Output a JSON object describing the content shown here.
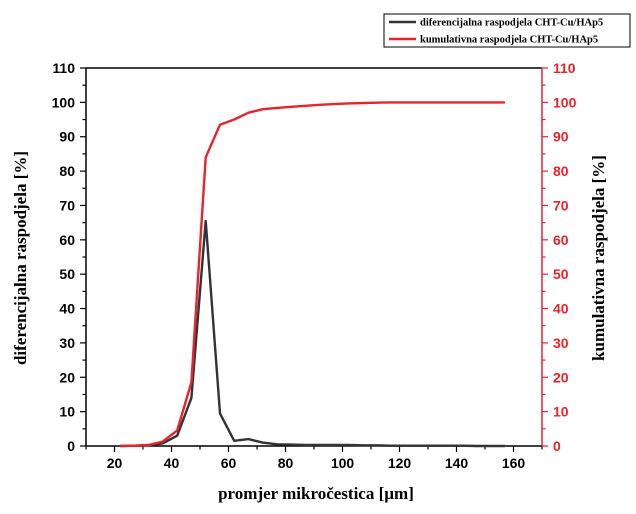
{
  "chart_data": {
    "type": "line",
    "xlabel": "promjer mikročestica [µm]",
    "ylabel_left": "diferencijalna raspodjela [%]",
    "ylabel_right": "kumulativna raspodjela [%]",
    "xlim": [
      10,
      170
    ],
    "ylim_left": [
      0,
      110
    ],
    "ylim_right": [
      0,
      110
    ],
    "x_ticks": [
      20,
      40,
      60,
      80,
      100,
      120,
      140,
      160
    ],
    "y_ticks": [
      0,
      10,
      20,
      30,
      40,
      50,
      60,
      70,
      80,
      90,
      100,
      110
    ],
    "grid": false,
    "legend_position": "top-right",
    "colors": {
      "left_axis": "#000000",
      "right_axis": "#e8232a"
    },
    "series": [
      {
        "name": "diferencijalna raspodjela CHT-Cu/HAp5",
        "axis": "left",
        "color": "#333333",
        "x": [
          22,
          27,
          32,
          37,
          42,
          47,
          52,
          57,
          62,
          67,
          72,
          77,
          82,
          87,
          92,
          97,
          102,
          107,
          112,
          117,
          122,
          127,
          132,
          137,
          142,
          147,
          152,
          157
        ],
        "y": [
          0,
          0.1,
          0.2,
          0.8,
          3,
          14,
          65.5,
          9.5,
          1.5,
          2,
          1,
          0.5,
          0.4,
          0.3,
          0.3,
          0.3,
          0.3,
          0.2,
          0.2,
          0.1,
          0.1,
          0.1,
          0.1,
          0.1,
          0.1,
          0,
          0,
          0
        ]
      },
      {
        "name": "kumulativna raspodjela CHT-Cu/HAp5",
        "axis": "right",
        "color": "#e8232a",
        "x": [
          22,
          27,
          32,
          37,
          42,
          47,
          52,
          57,
          62,
          67,
          72,
          77,
          82,
          87,
          92,
          97,
          102,
          107,
          112,
          117,
          122,
          127,
          132,
          137,
          142,
          147,
          152,
          157
        ],
        "y": [
          0,
          0.1,
          0.3,
          1.3,
          4.5,
          18.5,
          84,
          93.5,
          95,
          97,
          98,
          98.4,
          98.7,
          99,
          99.3,
          99.5,
          99.7,
          99.8,
          99.9,
          100,
          100,
          100,
          100,
          100,
          100,
          100,
          100,
          100
        ]
      }
    ]
  }
}
